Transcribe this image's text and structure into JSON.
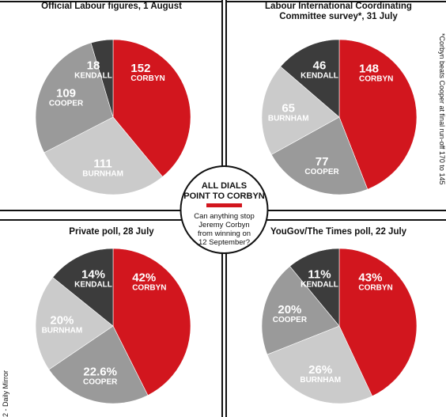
{
  "colors": {
    "corbyn": "#d2161e",
    "kendall": "#3c3c3c",
    "cooper": "#9a9a9a",
    "burnham": "#cbcbcb",
    "background": "#ffffff",
    "grid": "#111111"
  },
  "center": {
    "title_lines": [
      "ALL DIALS",
      "POINT TO CORBYN"
    ],
    "question_lines": [
      "Can anything stop",
      "Jeremy Corbyn",
      "from winning on",
      "12  September?"
    ]
  },
  "side_note_right": "*Corbyn beats Cooper at final run-off 170 to 145",
  "side_note_left": "2 - Daily Mirror",
  "chart_data": [
    {
      "type": "pie",
      "title": "Official Labour figures, 1 August",
      "series": [
        {
          "name": "CORBYN",
          "value": 152,
          "label": "152"
        },
        {
          "name": "BURNHAM",
          "value": 111,
          "label": "111"
        },
        {
          "name": "COOPER",
          "value": 109,
          "label": "109"
        },
        {
          "name": "KENDALL",
          "value": 18,
          "label": "18"
        }
      ]
    },
    {
      "type": "pie",
      "title": "Labour International Coordinating Committee survey*, 31 July",
      "title_lines": [
        "Labour International Coordinating",
        "Committee survey*, 31 July"
      ],
      "series": [
        {
          "name": "CORBYN",
          "value": 148,
          "label": "148"
        },
        {
          "name": "COOPER",
          "value": 77,
          "label": "77"
        },
        {
          "name": "BURNHAM",
          "value": 65,
          "label": "65"
        },
        {
          "name": "KENDALL",
          "value": 46,
          "label": "46"
        }
      ]
    },
    {
      "type": "pie",
      "title": "Private poll, 28 July",
      "series": [
        {
          "name": "CORBYN",
          "value": 42,
          "label": "42%"
        },
        {
          "name": "COOPER",
          "value": 22.6,
          "label": "22.6%"
        },
        {
          "name": "BURNHAM",
          "value": 20,
          "label": "20%"
        },
        {
          "name": "KENDALL",
          "value": 14,
          "label": "14%"
        }
      ]
    },
    {
      "type": "pie",
      "title": "YouGov/The Times poll, 22 July",
      "series": [
        {
          "name": "CORBYN",
          "value": 43,
          "label": "43%"
        },
        {
          "name": "BURNHAM",
          "value": 26,
          "label": "26%"
        },
        {
          "name": "COOPER",
          "value": 20,
          "label": "20%"
        },
        {
          "name": "KENDALL",
          "value": 11,
          "label": "11%"
        }
      ]
    }
  ]
}
